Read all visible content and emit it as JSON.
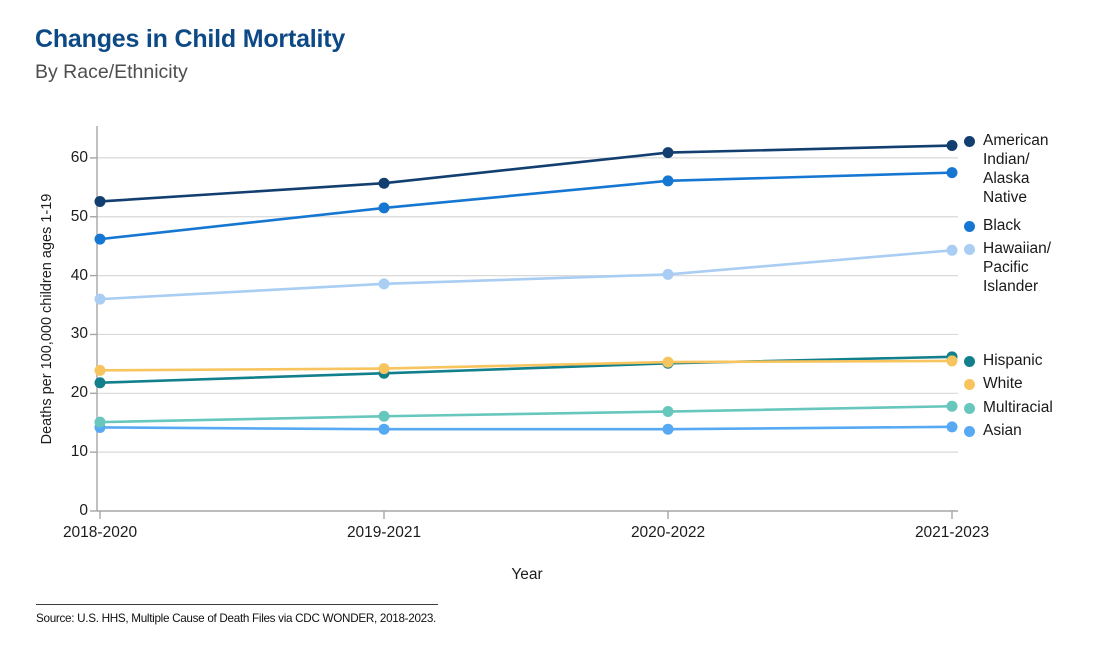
{
  "header": {
    "title": "Changes in Child Mortality",
    "subtitle": "By Race/Ethnicity"
  },
  "source": {
    "text": "Source: U.S. HHS, Multiple Cause of Death Files via CDC WONDER, 2018-2023."
  },
  "chart_data": {
    "type": "line",
    "title": "Changes in Child Mortality",
    "subtitle": "By Race/Ethnicity",
    "categories": [
      "2018-2020",
      "2019-2021",
      "2020-2022",
      "2021-2023"
    ],
    "xlabel": "Year",
    "ylabel": "Deaths per 100,000 children ages 1-19",
    "ylim": [
      0,
      60
    ],
    "yticks": [
      0,
      10,
      20,
      30,
      40,
      50,
      60
    ],
    "grid": true,
    "legend_position": "right",
    "marker": "circle",
    "series": [
      {
        "name": "American Indian/Alaska Native",
        "legend_lines": [
          "American",
          "Indian/",
          "Alaska",
          "Native"
        ],
        "color": "#133f70",
        "values": [
          52.6,
          55.7,
          60.9,
          62.1
        ]
      },
      {
        "name": "Black",
        "legend_lines": [
          "Black"
        ],
        "color": "#1677d3",
        "values": [
          46.2,
          51.5,
          56.1,
          57.5
        ]
      },
      {
        "name": "Hawaiian/Pacific Islander",
        "legend_lines": [
          "Hawaiian/",
          "Pacific",
          "Islander"
        ],
        "color": "#a9cdf3",
        "values": [
          36.0,
          38.6,
          40.2,
          44.3
        ]
      },
      {
        "name": "Hispanic",
        "legend_lines": [
          "Hispanic"
        ],
        "color": "#12808c",
        "values": [
          21.8,
          23.4,
          25.1,
          26.2
        ]
      },
      {
        "name": "White",
        "legend_lines": [
          "White"
        ],
        "color": "#f8c45e",
        "values": [
          23.9,
          24.2,
          25.3,
          25.5
        ]
      },
      {
        "name": "Multiracial",
        "legend_lines": [
          "Multiracial"
        ],
        "color": "#67c7bc",
        "values": [
          15.1,
          16.1,
          16.9,
          17.8
        ]
      },
      {
        "name": "Asian",
        "legend_lines": [
          "Asian"
        ],
        "color": "#58a9f4",
        "values": [
          14.2,
          13.9,
          13.9,
          14.3
        ]
      }
    ],
    "legend_groups": [
      [
        0,
        1,
        2
      ],
      [
        3,
        4,
        5,
        6
      ]
    ],
    "colors": {
      "title": "#0d4a85",
      "subtitle": "#4e4e4e",
      "gridline": "#d9d9d9",
      "axis": "#a6a6a6",
      "tick_text": "#1c1c1c"
    }
  }
}
